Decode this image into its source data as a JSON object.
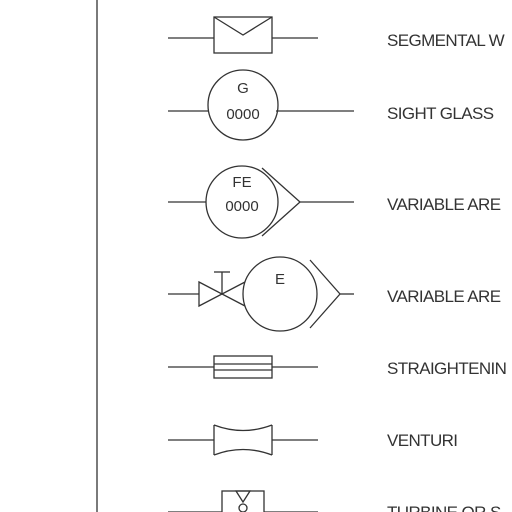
{
  "symbols": [
    {
      "id": "segmental-wedge",
      "label": "SEGMENTAL W"
    },
    {
      "id": "sight-glass",
      "label": "SIGHT GLASS",
      "tag_top": "G",
      "tag_bottom": "0000"
    },
    {
      "id": "variable-area-1",
      "label": "VARIABLE ARE",
      "tag_top": "FE",
      "tag_bottom": "0000"
    },
    {
      "id": "variable-area-2",
      "label": "VARIABLE ARE",
      "tag_top": "E",
      "valve_mark": "T"
    },
    {
      "id": "straightening",
      "label": "STRAIGHTENIN"
    },
    {
      "id": "venturi",
      "label": "VENTURI"
    },
    {
      "id": "turbine",
      "label": "TURBINE OR S"
    }
  ],
  "colors": {
    "line": "#333333",
    "background": "#ffffff"
  }
}
